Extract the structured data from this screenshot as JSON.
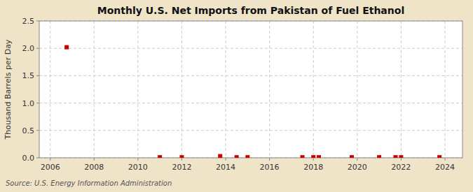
{
  "chart_data": {
    "type": "scatter",
    "title": "Monthly U.S. Net Imports from Pakistan of Fuel Ethanol",
    "ylabel": "Thousand Barrels per Day",
    "source": "Source: U.S. Energy Information Administration",
    "x": [
      2006.75,
      2011.0,
      2012.0,
      2013.75,
      2014.5,
      2015.0,
      2017.5,
      2018.0,
      2018.25,
      2019.75,
      2021.0,
      2021.75,
      2022.0,
      2023.75
    ],
    "values": [
      2.02,
      0.01,
      0.01,
      0.03,
      0.01,
      0.01,
      0.01,
      0.01,
      0.01,
      0.01,
      0.01,
      0.01,
      0.01,
      0.01
    ],
    "color": "#cc0000",
    "marker": "square",
    "xlim": [
      2005.5,
      2024.8
    ],
    "ylim": [
      0.0,
      2.5
    ],
    "xticks": [
      2006,
      2008,
      2010,
      2012,
      2014,
      2016,
      2018,
      2020,
      2022,
      2024
    ],
    "yticks": [
      {
        "value": 0.0,
        "label": "0.0"
      },
      0.5,
      {
        "value": 1.0,
        "label": "1.0"
      },
      1.5,
      {
        "value": 2.0,
        "label": "2.0"
      },
      2.5
    ],
    "grid": true
  }
}
